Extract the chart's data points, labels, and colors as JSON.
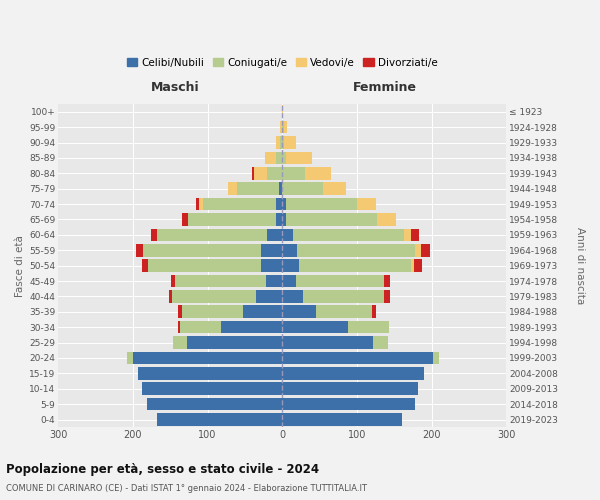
{
  "age_groups": [
    "0-4",
    "5-9",
    "10-14",
    "15-19",
    "20-24",
    "25-29",
    "30-34",
    "35-39",
    "40-44",
    "45-49",
    "50-54",
    "55-59",
    "60-64",
    "65-69",
    "70-74",
    "75-79",
    "80-84",
    "85-89",
    "90-94",
    "95-99",
    "100+"
  ],
  "birth_years": [
    "2019-2023",
    "2014-2018",
    "2009-2013",
    "2004-2008",
    "1999-2003",
    "1994-1998",
    "1989-1993",
    "1984-1988",
    "1979-1983",
    "1974-1978",
    "1969-1973",
    "1964-1968",
    "1959-1963",
    "1954-1958",
    "1949-1953",
    "1944-1948",
    "1939-1943",
    "1934-1938",
    "1929-1933",
    "1924-1928",
    "≤ 1923"
  ],
  "males": {
    "celibi": [
      168,
      181,
      188,
      193,
      200,
      128,
      82,
      52,
      35,
      22,
      28,
      28,
      20,
      8,
      8,
      5,
      0,
      0,
      0,
      0,
      0
    ],
    "coniugati": [
      0,
      0,
      0,
      0,
      8,
      18,
      55,
      82,
      112,
      122,
      152,
      158,
      148,
      118,
      98,
      55,
      20,
      8,
      3,
      1,
      0
    ],
    "vedovi": [
      0,
      0,
      0,
      0,
      0,
      0,
      0,
      0,
      0,
      0,
      0,
      0,
      0,
      0,
      5,
      12,
      18,
      15,
      5,
      2,
      1
    ],
    "divorziati": [
      0,
      0,
      0,
      0,
      0,
      0,
      2,
      5,
      5,
      5,
      8,
      10,
      8,
      8,
      5,
      0,
      2,
      0,
      0,
      0,
      0
    ]
  },
  "females": {
    "nubili": [
      160,
      178,
      182,
      190,
      202,
      122,
      88,
      45,
      28,
      18,
      22,
      20,
      15,
      5,
      5,
      0,
      0,
      0,
      0,
      0,
      0
    ],
    "coniugate": [
      0,
      0,
      0,
      0,
      8,
      20,
      55,
      75,
      108,
      118,
      150,
      158,
      148,
      122,
      95,
      55,
      30,
      5,
      3,
      2,
      0
    ],
    "vedove": [
      0,
      0,
      0,
      0,
      0,
      0,
      0,
      0,
      0,
      0,
      5,
      8,
      10,
      25,
      25,
      30,
      35,
      35,
      15,
      5,
      1
    ],
    "divorziate": [
      0,
      0,
      0,
      0,
      0,
      0,
      0,
      5,
      8,
      8,
      10,
      12,
      10,
      0,
      0,
      0,
      0,
      0,
      0,
      0,
      0
    ]
  },
  "colors": {
    "celibi": "#3d6fa8",
    "coniugati": "#b5cc8e",
    "vedovi": "#f5c972",
    "divorziati": "#cc2222"
  },
  "xlim": 300,
  "background_color": "#f2f2f2",
  "plot_bg": "#e8e8e8",
  "title": "Popolazione per età, sesso e stato civile - 2024",
  "subtitle": "COMUNE DI CARINARO (CE) - Dati ISTAT 1° gennaio 2024 - Elaborazione TUTTITALIA.IT",
  "ylabel_left": "Fasce di età",
  "ylabel_right": "Anni di nascita",
  "maschi_label": "Maschi",
  "femmine_label": "Femmine"
}
